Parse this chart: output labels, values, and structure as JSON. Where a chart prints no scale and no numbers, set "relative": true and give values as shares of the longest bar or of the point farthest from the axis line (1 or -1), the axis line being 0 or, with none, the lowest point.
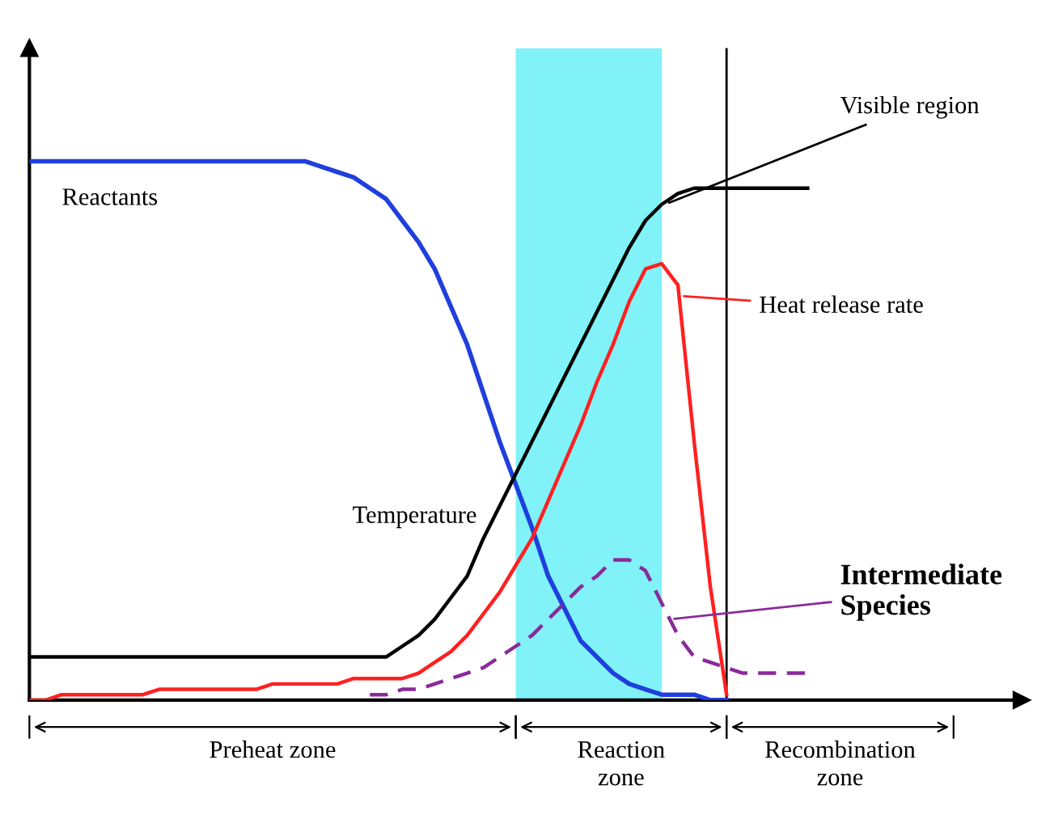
{
  "chart_data": {
    "type": "line",
    "relative": true,
    "tick_labels": false,
    "categories": [
      null,
      null,
      null,
      null,
      null,
      null,
      null,
      null,
      null,
      null,
      null,
      null,
      null,
      null,
      null,
      null,
      null,
      null,
      null,
      null,
      null,
      null,
      null,
      null,
      null,
      null,
      null,
      null,
      null,
      null,
      null,
      null,
      null,
      null,
      null,
      null,
      null,
      null,
      null,
      null,
      null,
      null,
      null,
      null,
      null,
      null,
      null,
      null,
      null,
      null,
      null,
      null,
      null,
      null,
      null,
      null,
      null,
      null,
      null,
      null,
      null
    ],
    "series": [
      {
        "name": "Reactants",
        "color": "#1f3fdc",
        "line_style": "solid",
        "values": [
          1.0,
          1.0,
          1.0,
          1.0,
          1.0,
          1.0,
          1.0,
          1.0,
          1.0,
          1.0,
          1.0,
          1.0,
          1.0,
          1.0,
          1.0,
          1.0,
          1.0,
          1.0,
          0.99,
          0.98,
          0.97,
          0.95,
          0.93,
          0.89,
          0.85,
          0.8,
          0.73,
          0.66,
          0.57,
          0.48,
          0.4,
          0.32,
          0.23,
          0.17,
          0.11,
          0.08,
          0.05,
          0.03,
          0.02,
          0.01,
          0.01,
          0.01,
          0.0,
          0.0,
          null,
          null,
          null,
          null,
          null,
          null,
          null,
          null,
          null,
          null,
          null,
          null,
          null,
          null,
          null,
          null,
          null
        ]
      },
      {
        "name": "Temperature",
        "color": "#000000",
        "line_style": "solid",
        "values": [
          0.08,
          0.08,
          0.08,
          0.08,
          0.08,
          0.08,
          0.08,
          0.08,
          0.08,
          0.08,
          0.08,
          0.08,
          0.08,
          0.08,
          0.08,
          0.08,
          0.08,
          0.08,
          0.08,
          0.08,
          0.08,
          0.08,
          0.08,
          0.1,
          0.12,
          0.15,
          0.19,
          0.23,
          0.3,
          0.36,
          0.42,
          0.48,
          0.54,
          0.6,
          0.66,
          0.72,
          0.78,
          0.84,
          0.89,
          0.92,
          0.94,
          0.95,
          0.95,
          0.95,
          0.95,
          0.95,
          0.95,
          0.95,
          0.95,
          null,
          null,
          null,
          null,
          null,
          null,
          null,
          null,
          null,
          null,
          null,
          null
        ]
      },
      {
        "name": "Heat release rate",
        "color": "#ff2020",
        "line_style": "solid",
        "values": [
          0.0,
          0.0,
          0.01,
          0.01,
          0.01,
          0.01,
          0.01,
          0.01,
          0.02,
          0.02,
          0.02,
          0.02,
          0.02,
          0.02,
          0.02,
          0.03,
          0.03,
          0.03,
          0.03,
          0.03,
          0.04,
          0.04,
          0.04,
          0.04,
          0.05,
          0.07,
          0.09,
          0.12,
          0.16,
          0.2,
          0.25,
          0.3,
          0.37,
          0.44,
          0.51,
          0.59,
          0.66,
          0.74,
          0.8,
          0.81,
          0.77,
          0.48,
          0.21,
          0.01,
          null,
          null,
          null,
          null,
          null,
          null,
          null,
          null,
          null,
          null,
          null,
          null,
          null,
          null,
          null,
          null,
          null
        ]
      },
      {
        "name": "Intermediate Species",
        "color": "#8a2a9a",
        "line_style": "dashed",
        "values": [
          null,
          null,
          null,
          null,
          null,
          null,
          null,
          null,
          null,
          null,
          null,
          null,
          null,
          null,
          null,
          null,
          null,
          null,
          null,
          null,
          null,
          0.01,
          0.01,
          0.02,
          0.02,
          0.03,
          0.04,
          0.05,
          0.06,
          0.08,
          0.1,
          0.12,
          0.15,
          0.18,
          0.21,
          0.23,
          0.26,
          0.26,
          0.24,
          0.18,
          0.12,
          0.08,
          0.07,
          0.06,
          0.05,
          0.05,
          0.05,
          0.05,
          0.05,
          null,
          null,
          null,
          null,
          null,
          null,
          null,
          null,
          null,
          null,
          null,
          null
        ]
      }
    ],
    "annotations": [
      "Visible region",
      "Preheat zone",
      "Reaction zone",
      "Recombination zone"
    ]
  }
}
